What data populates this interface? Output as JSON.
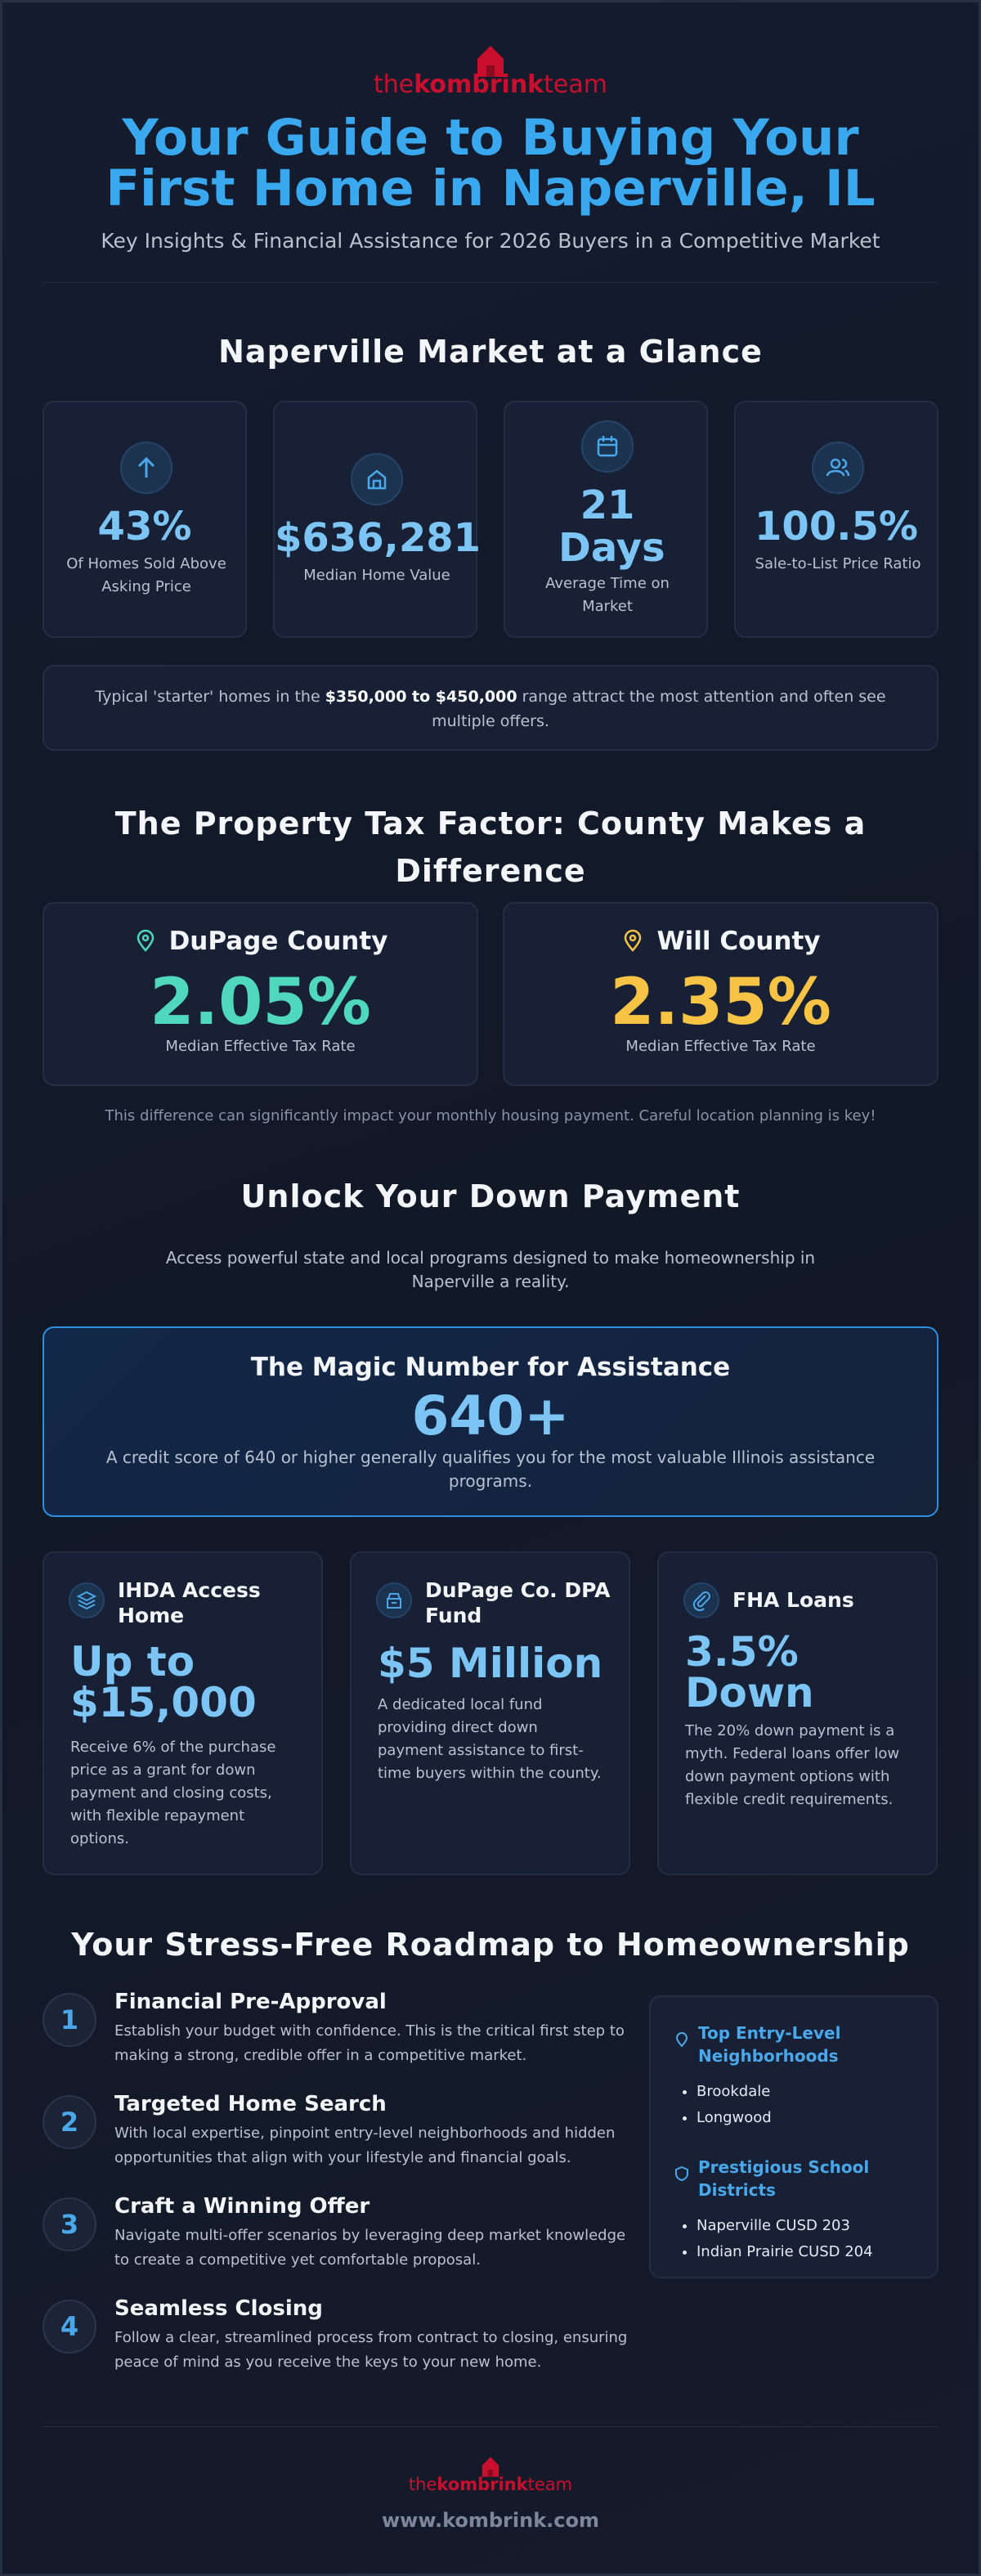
{
  "header": {
    "logo": {
      "prefix": "the",
      "brand": "kombrink",
      "suffix": "team"
    },
    "title": "Your Guide to Buying Your First Home in Naperville, IL",
    "subtitle": "Key Insights & Financial Assistance for 2026 Buyers in a Competitive Market"
  },
  "market": {
    "title": "Naperville Market at a Glance",
    "stats": [
      {
        "value": "43%",
        "label": "Of Homes Sold Above Asking Price"
      },
      {
        "value": "$636,281",
        "label": "Median Home Value"
      },
      {
        "value": "21 Days",
        "label": "Average Time on Market"
      },
      {
        "value": "100.5%",
        "label": "Sale-to-List Price Ratio"
      }
    ],
    "note": {
      "before": "Typical 'starter' homes in the ",
      "highlight": "$350,000 to $450,000",
      "after": " range attract the most attention and often see multiple offers."
    }
  },
  "tax": {
    "title": "The Property Tax Factor: County Makes a Difference",
    "counties": [
      {
        "name": "DuPage County",
        "rate": "2.05%",
        "label": "Median Effective Tax Rate"
      },
      {
        "name": "Will County",
        "rate": "2.35%",
        "label": "Median Effective Tax Rate"
      }
    ],
    "note": "This difference can significantly impact your monthly housing payment. Careful location planning is key!"
  },
  "down_payment": {
    "title": "Unlock Your Down Payment",
    "intro": "Access powerful state and local programs designed to make homeownership in Naperville a reality.",
    "magic": {
      "title": "The Magic Number for Assistance",
      "value": "640+",
      "text": "A credit score of 640 or higher generally qualifies you for the most valuable Illinois assistance programs."
    },
    "programs": [
      {
        "title": "IHDA Access Home",
        "value": "Up to $15,000",
        "text": "Receive 6% of the purchase price as a grant for down payment and closing costs, with flexible repayment options."
      },
      {
        "title": "DuPage Co. DPA Fund",
        "value": "$5 Million",
        "text": "A dedicated local fund providing direct down payment assistance to first-time buyers within the county."
      },
      {
        "title": "FHA Loans",
        "value": "3.5% Down",
        "text": "The 20% down payment is a myth. Federal loans offer low down payment options with flexible credit requirements."
      }
    ]
  },
  "roadmap": {
    "title": "Your Stress-Free Roadmap to Homeownership",
    "steps": [
      {
        "number": "1",
        "title": "Financial Pre-Approval",
        "text": "Establish your budget with confidence. This is the critical first step to making a strong, credible offer in a competitive market."
      },
      {
        "number": "2",
        "title": "Targeted Home Search",
        "text": "With local expertise, pinpoint entry-level neighborhoods and hidden opportunities that align with your lifestyle and financial goals."
      },
      {
        "number": "3",
        "title": "Craft a Winning Offer",
        "text": "Navigate multi-offer scenarios by leveraging deep market knowledge to create a competitive yet comfortable proposal."
      },
      {
        "number": "4",
        "title": "Seamless Closing",
        "text": "Follow a clear, streamlined process from contract to closing, ensuring peace of mind as you receive the keys to your new home."
      }
    ],
    "sidebar": [
      {
        "title": "Top Entry-Level Neighborhoods",
        "items": [
          "Brookdale",
          "Longwood"
        ]
      },
      {
        "title": "Prestigious School Districts",
        "items": [
          "Naperville CUSD 203",
          "Indian Prairie CUSD 204"
        ]
      }
    ]
  },
  "footer": {
    "logo": {
      "prefix": "the",
      "brand": "kombrink",
      "suffix": "team"
    },
    "url": "www.kombrink.com"
  }
}
